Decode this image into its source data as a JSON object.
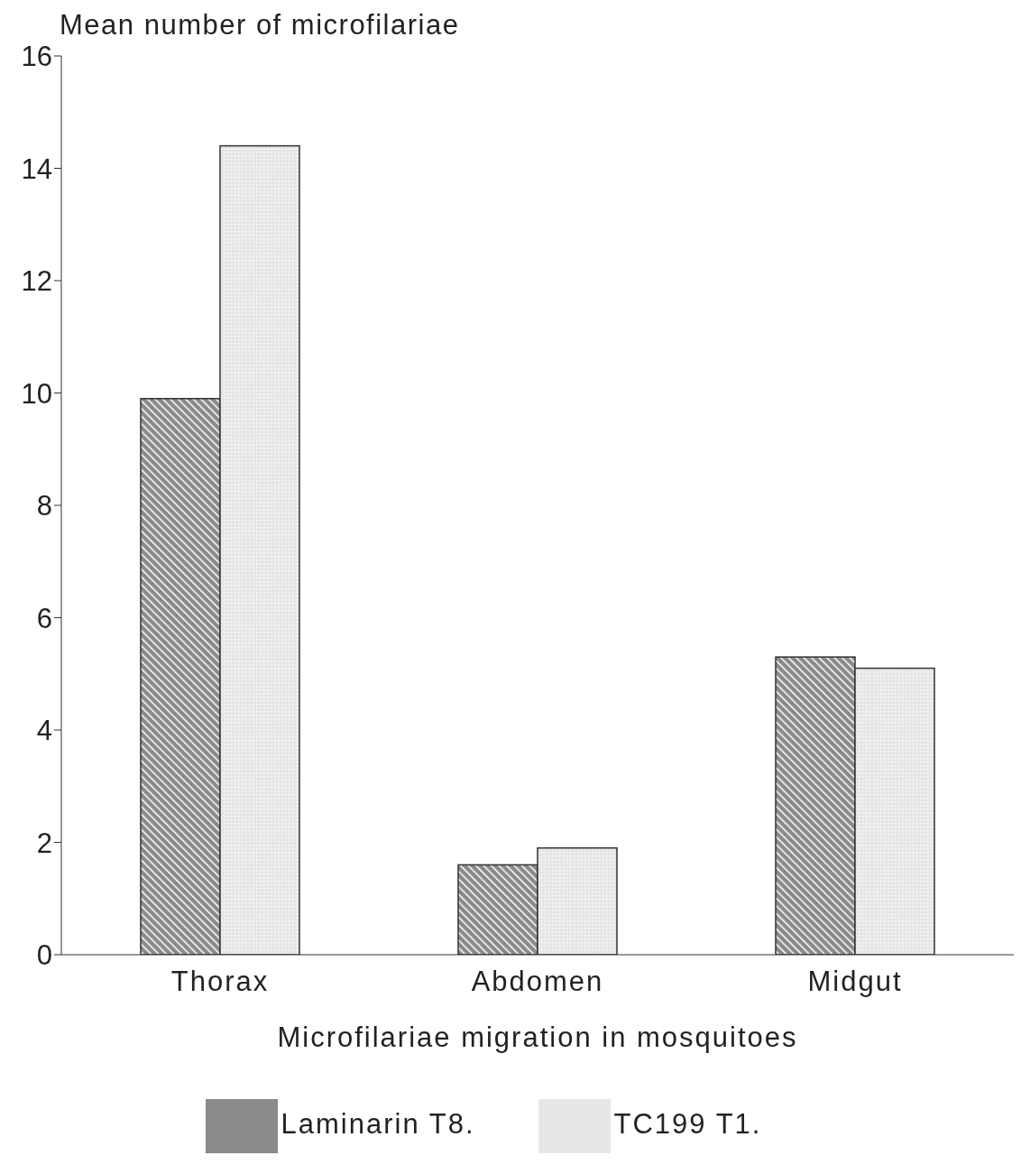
{
  "chart_data": {
    "type": "bar",
    "ylabel": "Mean number of microfilariae",
    "xlabel": "Microfilariae migration in mosquitoes",
    "categories": [
      "Thorax",
      "Abdomen",
      "Midgut"
    ],
    "series": [
      {
        "name": "Laminarin T8.",
        "color": "#8a8a8a",
        "values": [
          9.9,
          1.6,
          5.3
        ]
      },
      {
        "name": "TC199 T1.",
        "color": "#e6e6e6",
        "values": [
          14.4,
          1.9,
          5.1
        ]
      }
    ],
    "ylim": [
      0,
      16
    ],
    "yticks": [
      0,
      2,
      4,
      6,
      8,
      10,
      12,
      14,
      16
    ],
    "grid": false,
    "legend": "bottom"
  }
}
